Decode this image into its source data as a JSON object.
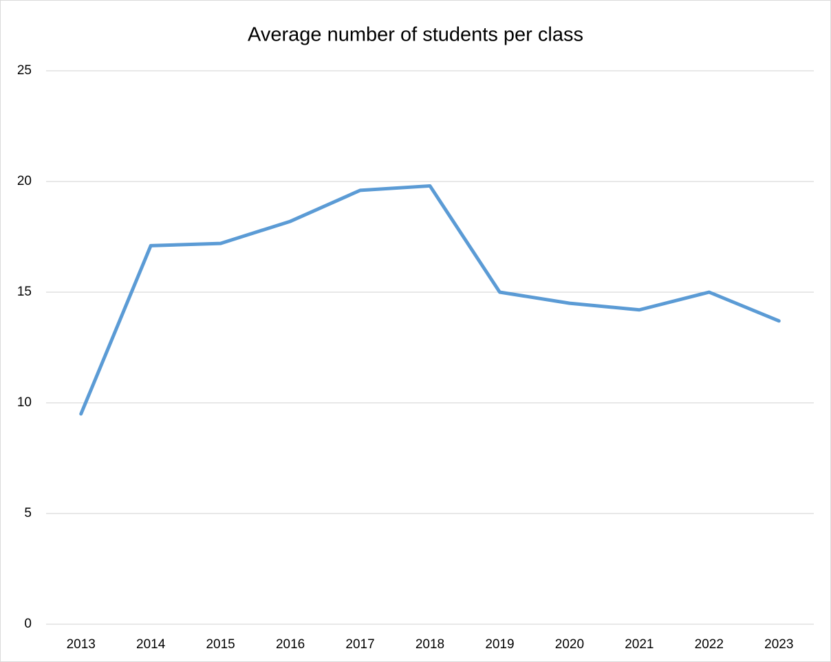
{
  "chart_data": {
    "type": "line",
    "title": "Average number of students per class",
    "categories": [
      "2013",
      "2014",
      "2015",
      "2016",
      "2017",
      "2018",
      "2019",
      "2020",
      "2021",
      "2022",
      "2023"
    ],
    "series": [
      {
        "name": "Average number of students per class",
        "color": "#5b9bd5",
        "values": [
          9.5,
          17.1,
          17.2,
          18.2,
          19.6,
          19.8,
          15.0,
          14.5,
          14.2,
          15.0,
          13.7
        ]
      }
    ],
    "ylim": [
      0,
      25
    ],
    "yticks": [
      0,
      5,
      10,
      15,
      20,
      25
    ],
    "grid": true
  }
}
